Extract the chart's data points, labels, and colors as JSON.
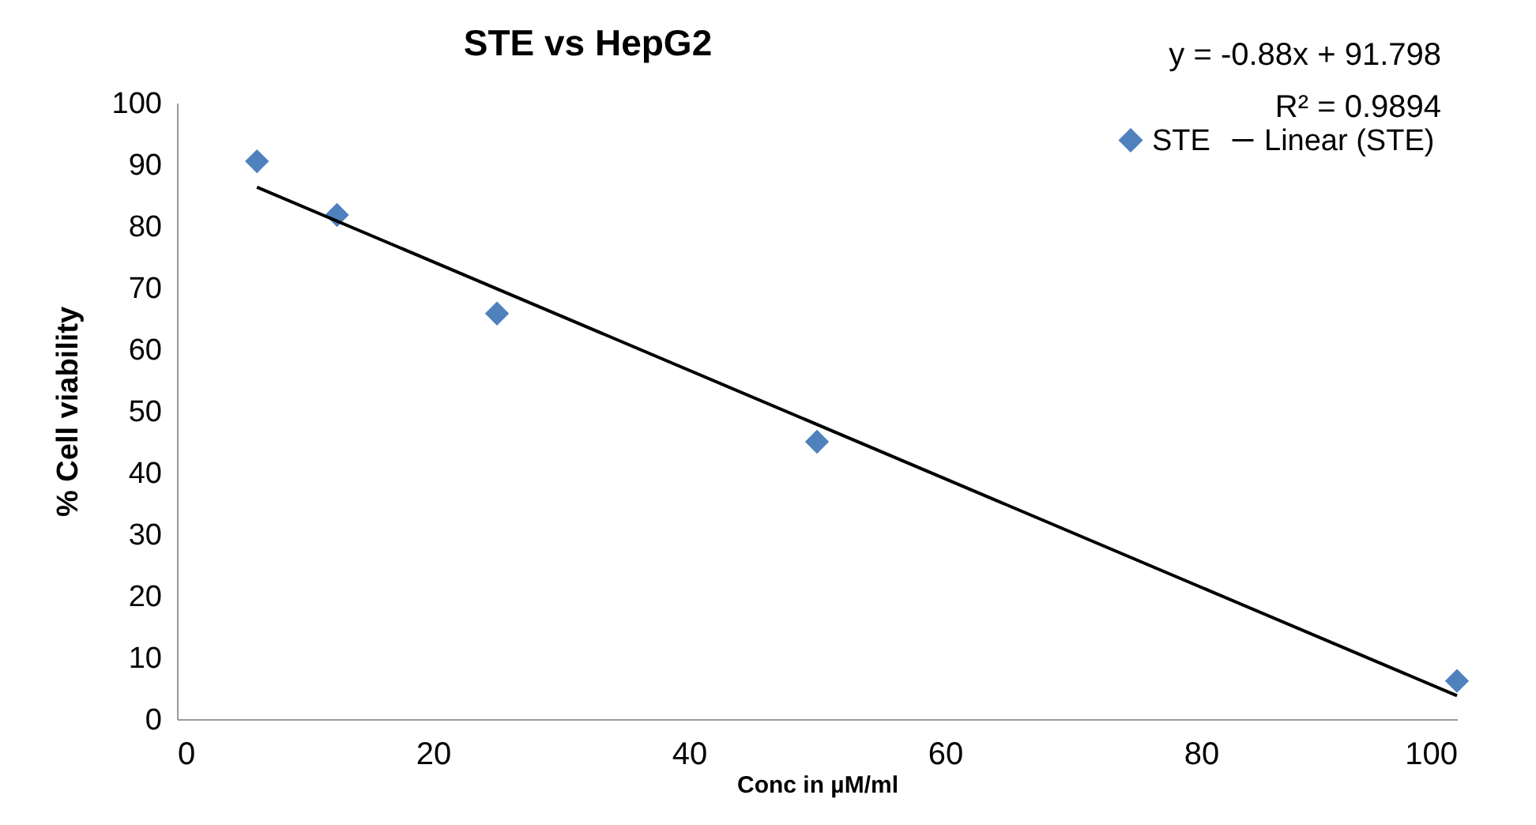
{
  "chart_data": {
    "type": "scatter",
    "title": "STE vs HepG2",
    "xlabel": "Conc in µM/ml",
    "ylabel": "% Cell viability",
    "annotations": [
      "y = -0.88x + 91.798",
      "R² = 0.9894"
    ],
    "x": [
      6.25,
      12.5,
      25,
      50,
      100
    ],
    "series": [
      {
        "name": "STE",
        "color": "#4f81bd",
        "values": [
          90.5,
          81.8,
          65.8,
          45,
          6.2
        ],
        "marker": "diamond"
      },
      {
        "name": "Linear (STE)",
        "type": "line",
        "color": "#000000",
        "x": [
          6.25,
          100
        ],
        "values": [
          86.3,
          3.8
        ],
        "line_style": "solid"
      }
    ],
    "xlim": [
      0,
      100
    ],
    "xticks": [
      0,
      20,
      40,
      60,
      80,
      100
    ],
    "ylim": [
      0,
      100
    ],
    "yticks": [
      0,
      10,
      20,
      30,
      40,
      50,
      60,
      70,
      80,
      90,
      100
    ],
    "grid": false,
    "legend": "top right"
  }
}
